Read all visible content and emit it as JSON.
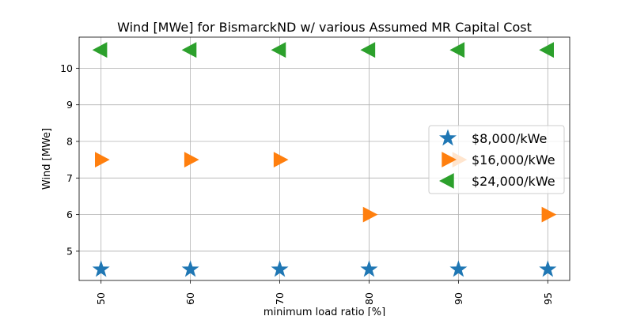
{
  "chart_data": {
    "type": "scatter",
    "title": "Wind [MWe] for BismarckND w/ various Assumed MR Capital Cost",
    "xlabel": "minimum load ratio [%]",
    "ylabel": "Wind [MWe]",
    "categories": [
      "50",
      "60",
      "70",
      "80",
      "90",
      "95"
    ],
    "ylim": [
      4.2,
      10.85
    ],
    "yticks": [
      5,
      6,
      7,
      8,
      9,
      10
    ],
    "grid": true,
    "legend_position": "center-right",
    "series": [
      {
        "name": "$8,000/kWe",
        "marker": "star",
        "color": "#1f77b4",
        "values": [
          4.5,
          4.5,
          4.5,
          4.5,
          4.5,
          4.5
        ]
      },
      {
        "name": "$16,000/kWe",
        "marker": "triangle-right",
        "color": "#ff7f0e",
        "values": [
          7.5,
          7.5,
          7.5,
          6.0,
          7.5,
          6.0
        ]
      },
      {
        "name": "$24,000/kWe",
        "marker": "triangle-left",
        "color": "#2ca02c",
        "values": [
          10.5,
          10.5,
          10.5,
          10.5,
          10.5,
          10.5
        ]
      }
    ]
  }
}
